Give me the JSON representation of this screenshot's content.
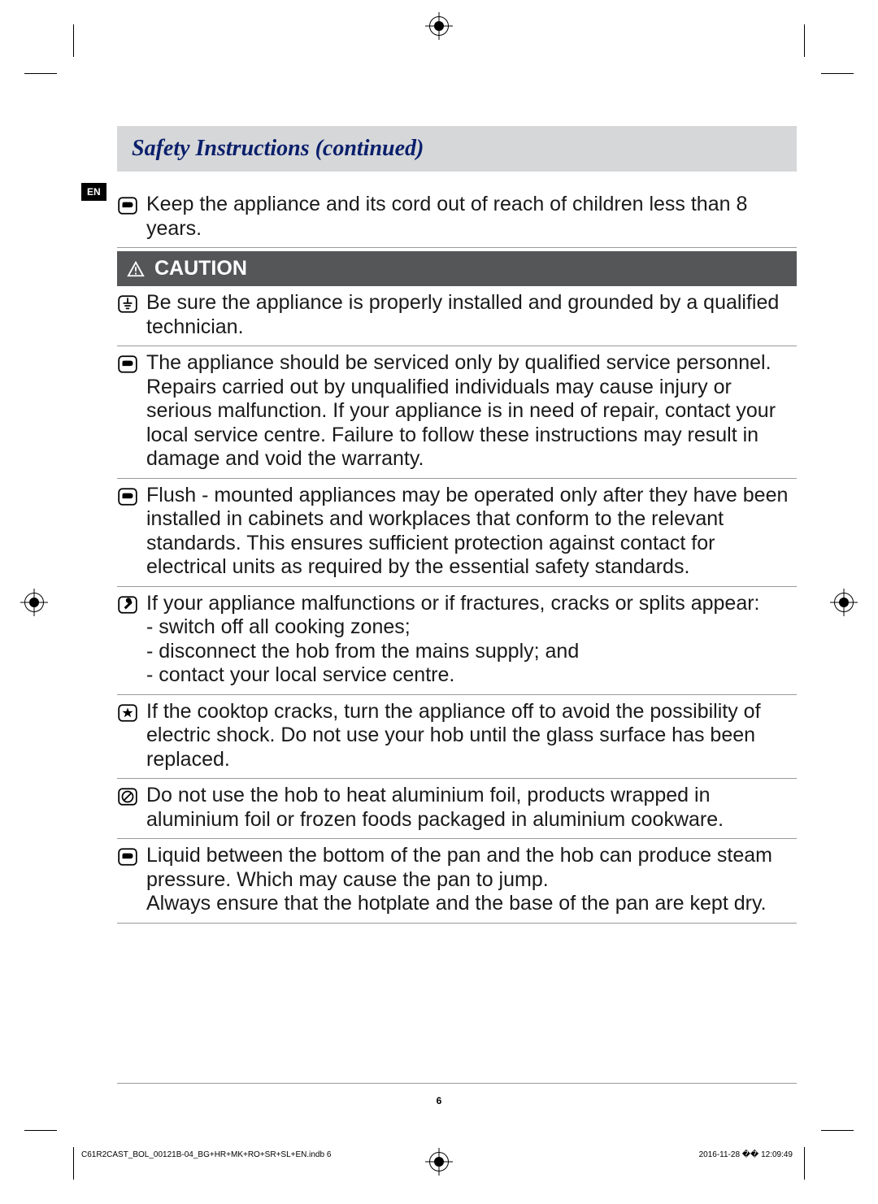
{
  "lang_tag": "EN",
  "header_title": "Safety Instructions (continued)",
  "caution_label": "CAUTION",
  "entries_top": [
    {
      "icon": "hand-point",
      "text": "Keep the appliance and its cord out of reach of children less than 8 years."
    }
  ],
  "entries_caution": [
    {
      "icon": "ground-plug",
      "text": "Be sure the appliance is properly installed and grounded by a qualified technician."
    },
    {
      "icon": "hand-point",
      "text": "The appliance should be serviced only by qualified service personnel. Repairs carried out by unqualified individuals may cause injury or serious malfunction. If your appliance is in need of repair, contact your local service centre. Failure to follow these instructions may result in damage and void the warranty."
    },
    {
      "icon": "hand-point",
      "text": "Flush - mounted appliances may be operated only after they have been installed in cabinets and workplaces that conform to the relevant standards. This ensures sufficient protection against contact for electrical units as required by the essential safety standards."
    },
    {
      "icon": "wrench",
      "text": "If your appliance malfunctions or if fractures, cracks or splits appear:\n- switch off all cooking zones;\n- disconnect the hob from the mains supply; and\n- contact your local service centre."
    },
    {
      "icon": "star-box",
      "text": "If the cooktop cracks, turn the appliance off to avoid the possibility of electric shock. Do not use your hob until the glass surface has been replaced."
    },
    {
      "icon": "no-slash",
      "text": "Do not use the hob to heat aluminium foil, products wrapped in aluminium foil or frozen foods packaged in aluminium cookware."
    },
    {
      "icon": "hand-point",
      "text": "Liquid between the bottom of the pan and the hob can produce steam pressure. Which may cause the pan to jump.\nAlways ensure that the hotplate and the base of the pan are kept dry."
    }
  ],
  "page_number": "6",
  "footer_left": "C61R2CAST_BOL_00121B-04_BG+HR+MK+RO+SR+SL+EN.indb   6",
  "footer_right": "2016-11-28   �� 12:09:49",
  "colors": {
    "header_bg": "#d6d7d9",
    "header_text": "#0a1f6b",
    "caution_bg": "#555657",
    "divider": "#9a9a9a",
    "body_text": "#1a1a1a"
  },
  "typography": {
    "header_family": "Times New Roman, serif",
    "header_fontsize_pt": 21,
    "body_fontsize_pt": 19
  }
}
